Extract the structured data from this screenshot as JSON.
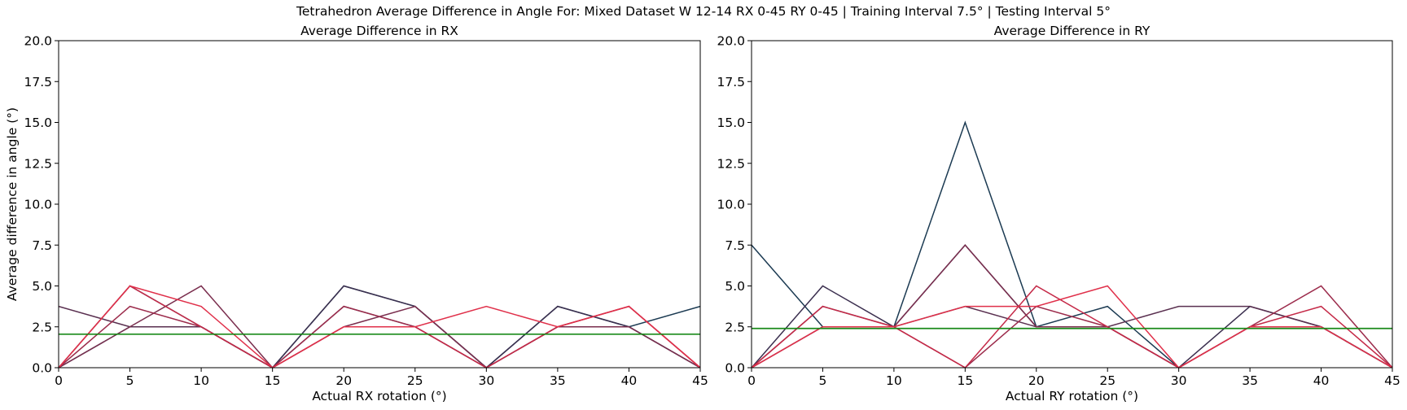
{
  "suptitle": "Tetrahedron Average Difference in Angle For: Mixed Dataset W 12-14 RX 0-45 RY 0-45 | Training Interval 7.5° | Testing Interval 5°",
  "chart_data": [
    {
      "type": "line",
      "title": "Average Difference in RX",
      "xlabel": "Actual RX rotation (°)",
      "ylabel": "Average difference in angle (°)",
      "xlim": [
        0,
        45
      ],
      "ylim": [
        0,
        20
      ],
      "xticks": [
        0,
        5,
        10,
        15,
        20,
        25,
        30,
        35,
        40,
        45
      ],
      "yticks": [
        0.0,
        2.5,
        5.0,
        7.5,
        10.0,
        12.5,
        15.0,
        17.5,
        20.0
      ],
      "x": [
        0,
        5,
        10,
        15,
        20,
        25,
        30,
        35,
        40,
        45
      ],
      "reference_line": {
        "y": 2.05,
        "color": "#1a8a1a"
      },
      "series": [
        {
          "color": "#1b3a52",
          "values": [
            0,
            2.5,
            2.5,
            0,
            5.0,
            3.75,
            0,
            3.75,
            2.5,
            3.75
          ]
        },
        {
          "color": "#3b2f4f",
          "values": [
            0,
            5.0,
            2.5,
            0,
            5.0,
            3.75,
            0,
            3.75,
            2.5,
            0
          ]
        },
        {
          "color": "#5a3050",
          "values": [
            3.75,
            2.5,
            2.5,
            0,
            3.75,
            2.5,
            0,
            2.5,
            2.5,
            0
          ]
        },
        {
          "color": "#7a2e4e",
          "values": [
            0,
            2.5,
            5.0,
            0,
            2.5,
            3.75,
            0,
            2.5,
            2.5,
            0
          ]
        },
        {
          "color": "#9c2c4c",
          "values": [
            0,
            3.75,
            2.5,
            0,
            3.75,
            2.5,
            0,
            2.5,
            3.75,
            0
          ]
        },
        {
          "color": "#c52a48",
          "values": [
            0,
            5.0,
            2.5,
            0,
            2.5,
            2.5,
            0,
            2.5,
            3.75,
            0
          ]
        },
        {
          "color": "#e0304a",
          "values": [
            0,
            5.0,
            3.75,
            0,
            2.5,
            2.5,
            3.75,
            2.5,
            3.75,
            0
          ]
        }
      ]
    },
    {
      "type": "line",
      "title": "Average Difference in RY",
      "xlabel": "Actual RY rotation (°)",
      "ylabel": "",
      "xlim": [
        0,
        45
      ],
      "ylim": [
        0,
        20
      ],
      "xticks": [
        0,
        5,
        10,
        15,
        20,
        25,
        30,
        35,
        40,
        45
      ],
      "yticks": [
        0.0,
        2.5,
        5.0,
        7.5,
        10.0,
        12.5,
        15.0,
        17.5,
        20.0
      ],
      "x": [
        0,
        5,
        10,
        15,
        20,
        25,
        30,
        35,
        40,
        45
      ],
      "reference_line": {
        "y": 2.4,
        "color": "#1a8a1a"
      },
      "series": [
        {
          "color": "#1b3a52",
          "values": [
            7.5,
            2.5,
            2.5,
            15.0,
            2.5,
            3.75,
            0,
            2.5,
            2.5,
            0
          ]
        },
        {
          "color": "#3b2f4f",
          "values": [
            0,
            5.0,
            2.5,
            7.5,
            2.5,
            2.5,
            0,
            3.75,
            2.5,
            0
          ]
        },
        {
          "color": "#5a3050",
          "values": [
            0,
            3.75,
            2.5,
            3.75,
            2.5,
            2.5,
            3.75,
            3.75,
            2.5,
            0
          ]
        },
        {
          "color": "#7a2e4e",
          "values": [
            0,
            2.5,
            2.5,
            7.5,
            2.5,
            2.5,
            0,
            2.5,
            2.5,
            0
          ]
        },
        {
          "color": "#9c2c4c",
          "values": [
            0,
            2.5,
            2.5,
            0,
            3.75,
            2.5,
            0,
            2.5,
            5.0,
            0
          ]
        },
        {
          "color": "#c52a48",
          "values": [
            0,
            3.75,
            2.5,
            0,
            5.0,
            2.5,
            0,
            2.5,
            3.75,
            0
          ]
        },
        {
          "color": "#e0304a",
          "values": [
            0,
            2.5,
            2.5,
            3.75,
            3.75,
            5.0,
            0,
            2.5,
            2.5,
            0
          ]
        }
      ]
    }
  ]
}
